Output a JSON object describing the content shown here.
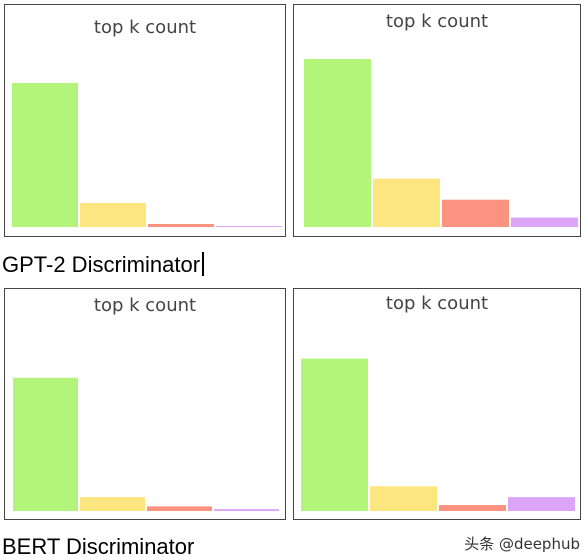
{
  "sections": [
    {
      "label": ""
    },
    {
      "label": "GPT-2 Discriminator"
    },
    {
      "label": "BERT Discriminator"
    }
  ],
  "watermark": "头条 @deephub",
  "chart_data": [
    {
      "type": "bar",
      "title": "top k count",
      "categories": [
        "",
        "",
        "",
        ""
      ],
      "values": [
        72,
        12,
        1.5,
        0.5
      ],
      "ylim": [
        0,
        100
      ],
      "bar_colors": [
        "#b3f57a",
        "#fde580",
        "#fb9380",
        "#dda5f7"
      ]
    },
    {
      "type": "bar",
      "title": "top k count",
      "categories": [
        "",
        "",
        "",
        ""
      ],
      "values": [
        80,
        23,
        13,
        4.5
      ],
      "ylim": [
        0,
        100
      ],
      "bar_colors": [
        "#b3f57a",
        "#fde580",
        "#fb9380",
        "#dda5f7"
      ]
    },
    {
      "type": "bar",
      "title": "top k count",
      "categories": [
        "",
        "",
        "",
        ""
      ],
      "values": [
        72,
        7.5,
        2.5,
        1
      ],
      "ylim": [
        0,
        100
      ],
      "bar_colors": [
        "#b3f57a",
        "#fde580",
        "#fb9380",
        "#dda5f7"
      ]
    },
    {
      "type": "bar",
      "title": "top k count",
      "categories": [
        "",
        "",
        "",
        ""
      ],
      "values": [
        77,
        12.5,
        3,
        7
      ],
      "ylim": [
        0,
        100
      ],
      "bar_colors": [
        "#b3f57a",
        "#fde580",
        "#fb9380",
        "#dda5f7"
      ]
    }
  ]
}
